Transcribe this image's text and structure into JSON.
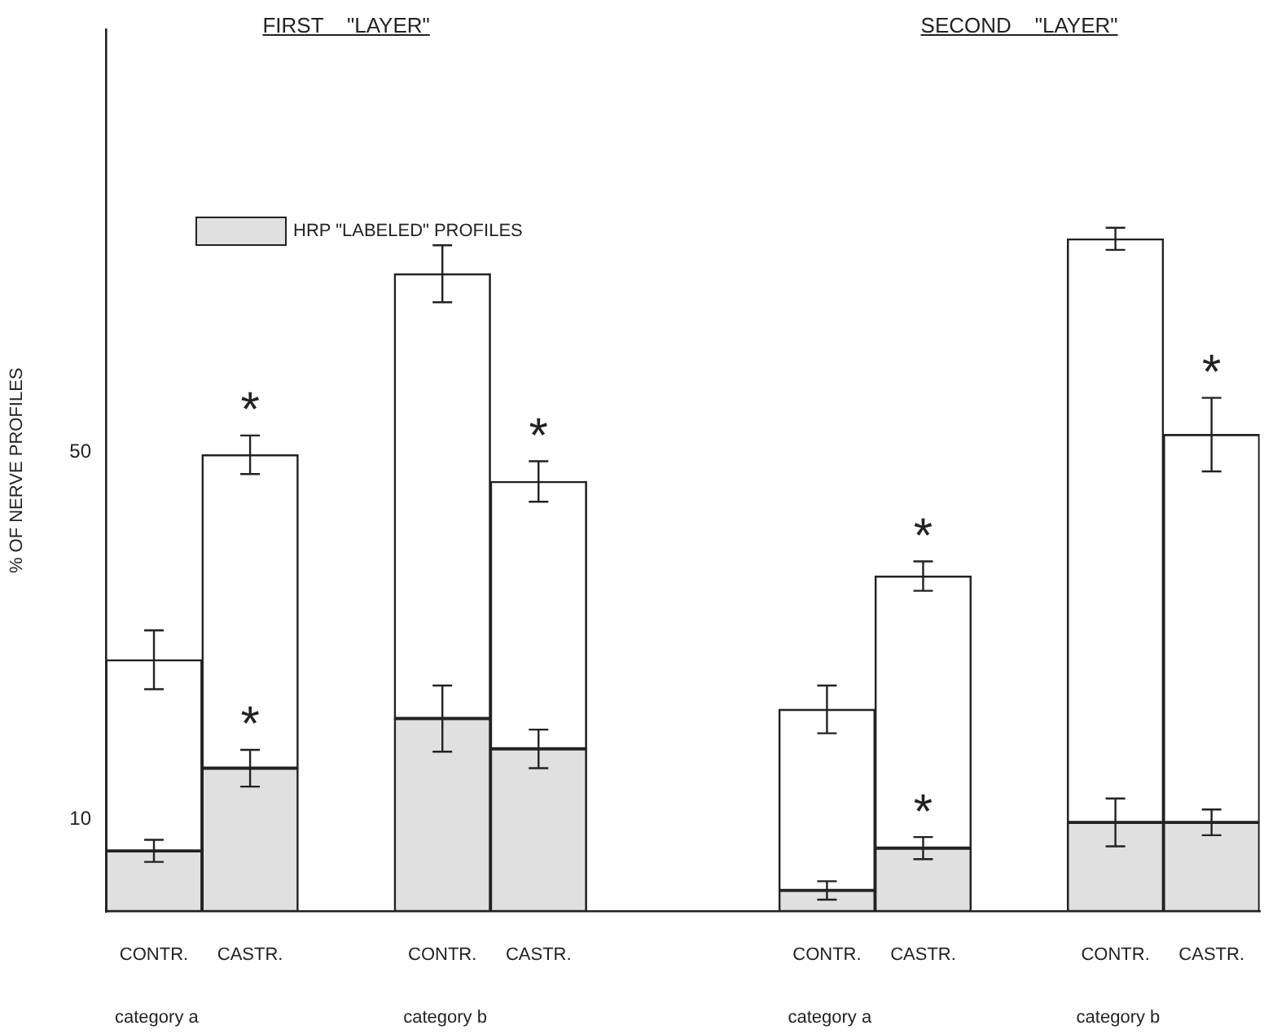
{
  "chart_data": {
    "type": "bar",
    "stacked": true,
    "ylabel": "% OF NERVE PROFILES",
    "categories": [
      "CONTR.",
      "CASTR.",
      null,
      "CONTR.",
      "CASTR.",
      null,
      null,
      "CONTR.",
      "CASTR.",
      null,
      "CONTR.",
      "CASTR."
    ],
    "series": [
      {
        "name": "HRP \"LABELED\" PROFILES",
        "color": "#e0e0e0",
        "values": [
          6.6,
          15.6,
          null,
          21.0,
          17.7,
          null,
          null,
          2.3,
          6.9,
          null,
          9.7,
          9.7
        ],
        "errors": [
          1.2,
          2,
          null,
          3.6,
          2.1,
          null,
          null,
          1,
          1.2,
          null,
          2.6,
          1.4
        ]
      },
      {
        "color": "#ffffff",
        "values": [
          20.8,
          34.1,
          null,
          48.4,
          29.1,
          null,
          null,
          19.7,
          29.6,
          null,
          63.5,
          42.2
        ],
        "errors": [
          3.2,
          2.1,
          null,
          3.1,
          2.2,
          null,
          null,
          2.6,
          1.6,
          null,
          1.2,
          4
        ]
      }
    ],
    "ylim": [
      0,
      96
    ],
    "yticks": [
      10,
      50
    ],
    "grid": false,
    "legend": "top left",
    "annotations": [
      "FIRST    \"LAYER\"",
      "SECOND    \"LAYER\"",
      "category a",
      "category b",
      "category a",
      "category b",
      "*",
      "*",
      "*",
      "*",
      "*",
      "*"
    ]
  }
}
